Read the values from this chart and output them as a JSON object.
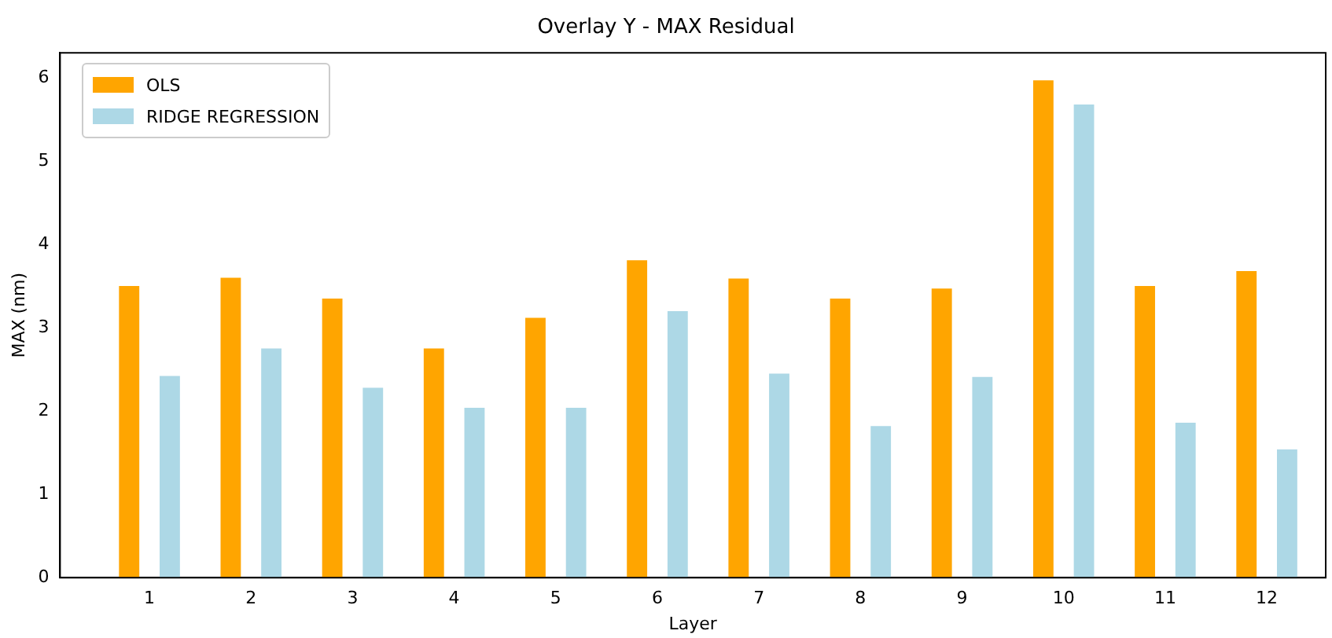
{
  "chart_data": {
    "type": "bar",
    "title": "Overlay Y - MAX Residual",
    "xlabel": "Layer",
    "ylabel": "MAX (nm)",
    "categories": [
      "1",
      "2",
      "3",
      "4",
      "5",
      "6",
      "7",
      "8",
      "9",
      "10",
      "11",
      "12"
    ],
    "series": [
      {
        "name": "OLS",
        "color": "#ffa500",
        "values": [
          3.5,
          3.6,
          3.35,
          2.75,
          3.12,
          3.81,
          3.59,
          3.35,
          3.47,
          5.97,
          3.5,
          3.68
        ]
      },
      {
        "name": "RIDGE REGRESSION",
        "color": "#add8e6",
        "values": [
          2.42,
          2.75,
          2.28,
          2.04,
          2.04,
          3.2,
          2.45,
          1.82,
          2.41,
          5.68,
          1.86,
          1.54
        ]
      }
    ],
    "ylim": [
      0,
      6.3
    ],
    "yticks": [
      0,
      1,
      2,
      3,
      4,
      5,
      6
    ],
    "grid": false,
    "legend": "top left"
  }
}
